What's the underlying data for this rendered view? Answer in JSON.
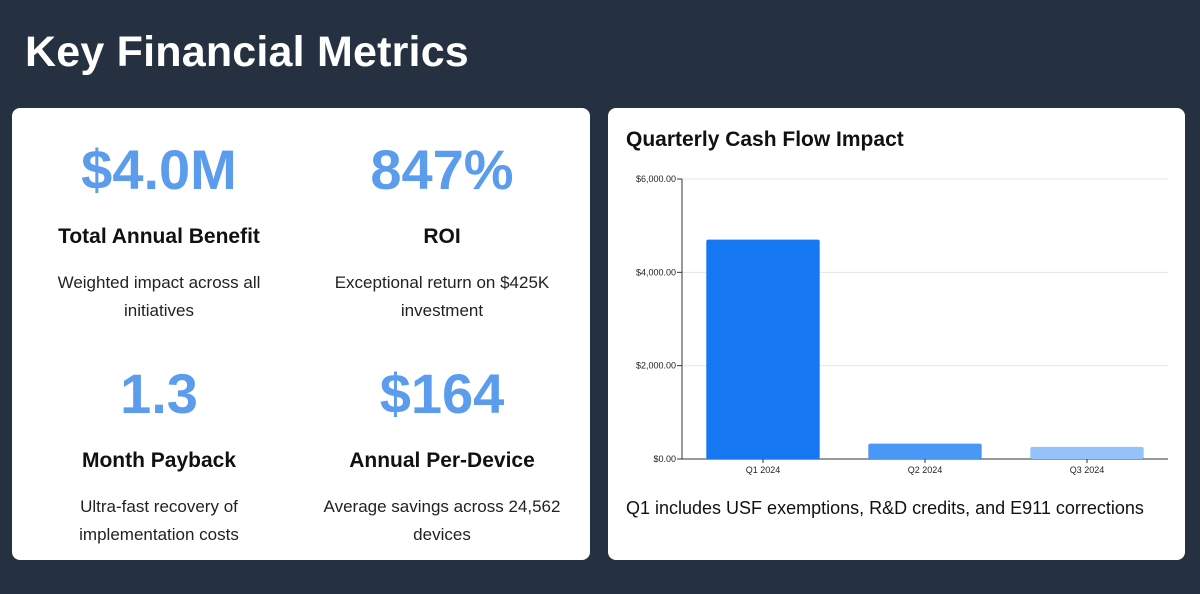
{
  "page": {
    "title": "Key Financial Metrics"
  },
  "metrics": [
    {
      "value": "$4.0M",
      "label": "Total Annual Benefit",
      "description": "Weighted impact across all initiatives"
    },
    {
      "value": "847%",
      "label": "ROI",
      "description": "Exceptional return on $425K investment"
    },
    {
      "value": "1.3",
      "label": "Month Payback",
      "description": "Ultra-fast recovery of implementation costs"
    },
    {
      "value": "$164",
      "label": "Annual Per-Device",
      "description": "Average savings across 24,562 devices"
    }
  ],
  "chart_panel": {
    "title": "Quarterly Cash Flow Impact",
    "note": "Q1 includes USF exemptions, R&D credits, and E911 corrections"
  },
  "chart_data": {
    "type": "bar",
    "title": "Quarterly Cash Flow Impact",
    "categories": [
      "Q1 2024",
      "Q2 2024",
      "Q3 2024"
    ],
    "values": [
      4700,
      330,
      260
    ],
    "colors": [
      "#1677f2",
      "#4a98f5",
      "#95c2f9"
    ],
    "ylim": [
      0,
      6000
    ],
    "yticks": [
      0,
      2000,
      4000,
      6000
    ],
    "ytick_labels": [
      "$0.00",
      "$2,000.00",
      "$4,000.00",
      "$6,000.00"
    ],
    "grid": true,
    "xlabel": "",
    "ylabel": ""
  }
}
